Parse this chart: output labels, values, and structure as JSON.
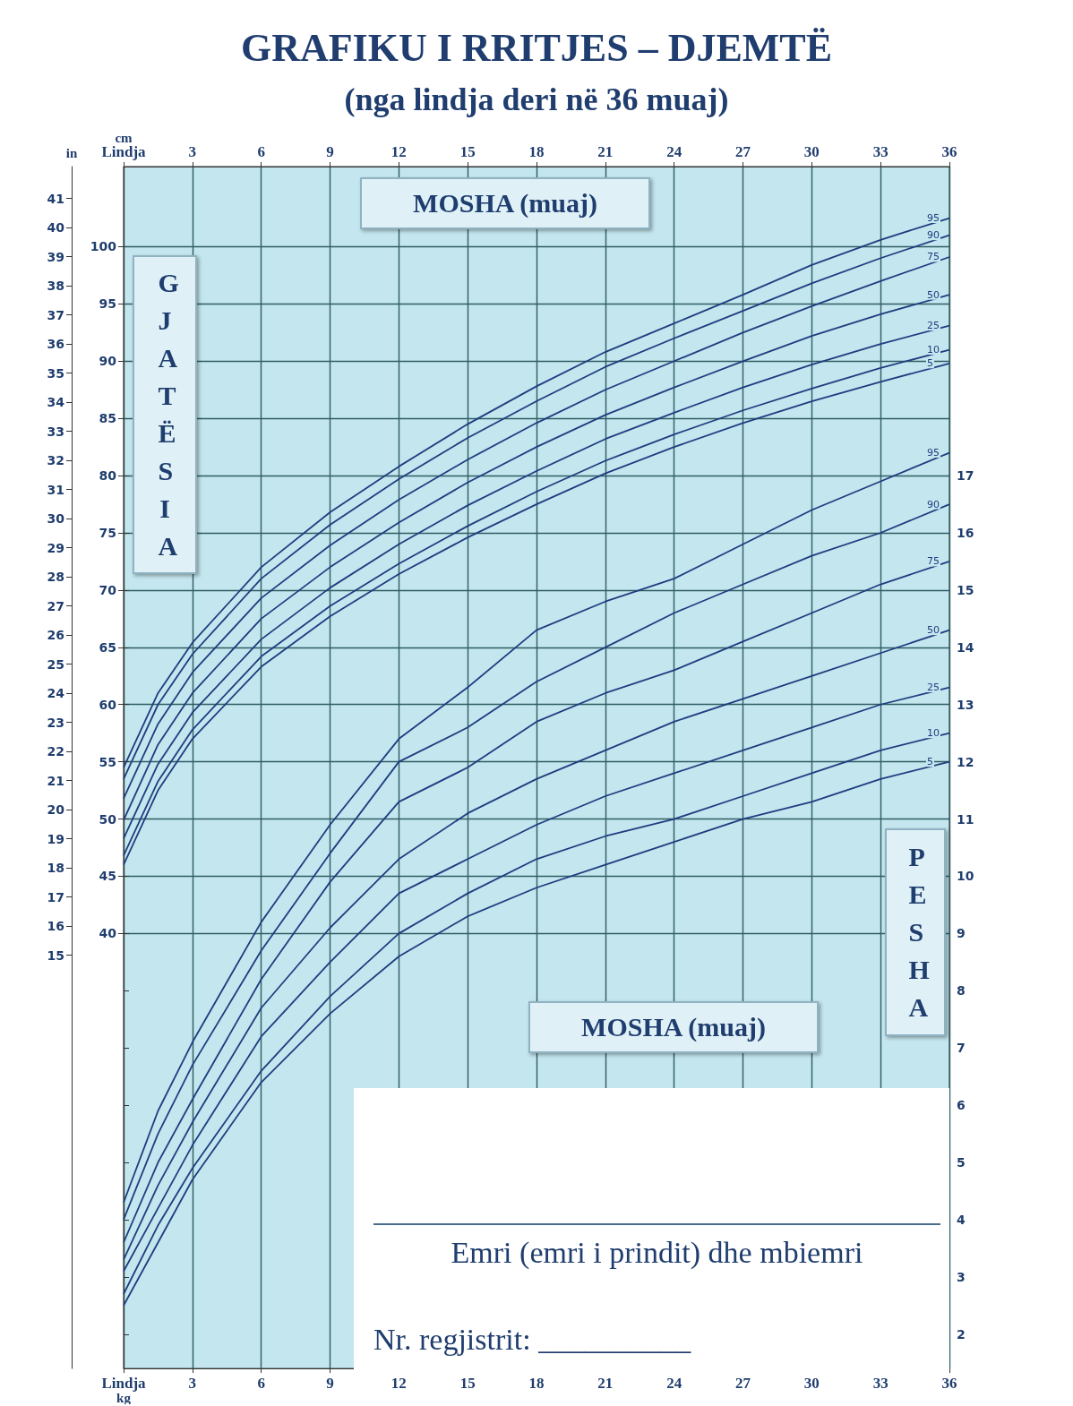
{
  "chart_data": {
    "type": "line",
    "title": "GRAFIKU I RRITJES – DJEMTË",
    "subtitle": "(nga lindja deri në 36 muaj)",
    "xlabel": "MOSHA (muaj)",
    "ylabel": "GJATËSIA",
    "y2label": "PESHA",
    "x": [
      0,
      1.5,
      3,
      6,
      9,
      12,
      15,
      18,
      21,
      24,
      27,
      30,
      33,
      36
    ],
    "xlim": [
      0,
      36
    ],
    "xticks": [
      {
        "value": 0,
        "label": "Lindja"
      },
      3,
      6,
      9,
      12,
      15,
      18,
      21,
      24,
      27,
      30,
      33,
      36
    ],
    "x2lim": [
      0,
      36
    ],
    "x2ticks": [
      {
        "value": 0,
        "label": "Lindja"
      },
      3,
      6,
      9,
      12,
      15,
      18,
      21,
      24,
      27,
      30,
      33,
      36
    ],
    "ylim": [
      2,
      107
    ],
    "yticks": [
      40,
      45,
      50,
      55,
      60,
      65,
      70,
      75,
      80,
      85,
      90,
      95,
      100
    ],
    "y2lim": [
      1.4,
      22.4
    ],
    "y2ticks": [
      2,
      3,
      4,
      5,
      6,
      7,
      8,
      9,
      10,
      11,
      12,
      13,
      14,
      15,
      16,
      17
    ],
    "y3lim": [
      0.8,
      42.1
    ],
    "y3ticks": [
      15,
      16,
      17,
      18,
      19,
      20,
      21,
      22,
      23,
      24,
      25,
      26,
      27,
      28,
      29,
      30,
      31,
      32,
      33,
      34,
      35,
      36,
      37,
      38,
      39,
      40,
      41
    ],
    "grid": true,
    "series": [
      {
        "name": "95",
        "color": "#1f3d80",
        "axis": "y",
        "values": [
          54.5,
          61.0,
          65.4,
          72.0,
          76.8,
          80.8,
          84.5,
          87.8,
          90.8,
          93.3,
          95.8,
          98.4,
          100.6,
          102.5
        ]
      },
      {
        "name": "90",
        "color": "#1f3d80",
        "axis": "y",
        "values": [
          53.5,
          60.0,
          64.4,
          71.0,
          75.7,
          79.7,
          83.3,
          86.5,
          89.5,
          92.0,
          94.4,
          96.8,
          99.0,
          101.0
        ]
      },
      {
        "name": "75",
        "color": "#1f3d80",
        "axis": "y",
        "values": [
          51.8,
          58.3,
          62.8,
          69.3,
          73.9,
          77.9,
          81.4,
          84.6,
          87.5,
          90.0,
          92.5,
          94.8,
          97.0,
          99.1
        ]
      },
      {
        "name": "50",
        "color": "#1f3d80",
        "axis": "y",
        "values": [
          49.9,
          56.5,
          61.0,
          67.5,
          72.0,
          75.9,
          79.4,
          82.5,
          85.3,
          87.7,
          90.0,
          92.2,
          94.1,
          95.8
        ]
      },
      {
        "name": "25",
        "color": "#1f3d80",
        "axis": "y",
        "values": [
          48.3,
          54.8,
          59.3,
          65.7,
          70.2,
          74.0,
          77.4,
          80.4,
          83.2,
          85.5,
          87.7,
          89.7,
          91.5,
          93.1
        ]
      },
      {
        "name": "10",
        "color": "#1f3d80",
        "axis": "y",
        "values": [
          46.8,
          53.3,
          57.8,
          64.2,
          68.6,
          72.3,
          75.6,
          78.6,
          81.3,
          83.6,
          85.7,
          87.6,
          89.4,
          91.0
        ]
      },
      {
        "name": "5",
        "color": "#1f3d80",
        "axis": "y",
        "values": [
          46.0,
          52.5,
          57.0,
          63.3,
          67.7,
          71.4,
          74.6,
          77.5,
          80.2,
          82.5,
          84.6,
          86.5,
          88.2,
          89.8
        ]
      },
      {
        "name": "95",
        "color": "#1f3d80",
        "axis": "y2",
        "values": [
          4.3,
          5.9,
          7.1,
          9.2,
          10.9,
          12.4,
          13.3,
          14.3,
          14.8,
          15.2,
          15.8,
          16.4,
          16.9,
          17.4
        ]
      },
      {
        "name": "90",
        "color": "#1f3d80",
        "axis": "y2",
        "values": [
          4.0,
          5.5,
          6.7,
          8.7,
          10.4,
          12.0,
          12.6,
          13.4,
          14.0,
          14.6,
          15.1,
          15.6,
          16.0,
          16.5
        ]
      },
      {
        "name": "75",
        "color": "#1f3d80",
        "axis": "y2",
        "values": [
          3.6,
          5.0,
          6.1,
          8.2,
          9.9,
          11.3,
          11.9,
          12.7,
          13.2,
          13.6,
          14.1,
          14.6,
          15.1,
          15.5
        ]
      },
      {
        "name": "50",
        "color": "#1f3d80",
        "axis": "y2",
        "values": [
          3.3,
          4.6,
          5.7,
          7.7,
          9.1,
          10.3,
          11.1,
          11.7,
          12.2,
          12.7,
          13.1,
          13.5,
          13.9,
          14.3
        ]
      },
      {
        "name": "25",
        "color": "#1f3d80",
        "axis": "y2",
        "values": [
          3.1,
          4.2,
          5.3,
          7.2,
          8.5,
          9.7,
          10.3,
          10.9,
          11.4,
          11.8,
          12.2,
          12.6,
          13.0,
          13.3
        ]
      },
      {
        "name": "10",
        "color": "#1f3d80",
        "axis": "y2",
        "values": [
          2.7,
          3.9,
          4.9,
          6.6,
          7.9,
          9.0,
          9.7,
          10.3,
          10.7,
          11.0,
          11.4,
          11.8,
          12.2,
          12.5
        ]
      },
      {
        "name": "5",
        "color": "#1f3d80",
        "axis": "y2",
        "values": [
          2.5,
          3.6,
          4.7,
          6.4,
          7.6,
          8.6,
          9.3,
          9.8,
          10.2,
          10.6,
          11.0,
          11.3,
          11.7,
          12.0
        ]
      }
    ],
    "annotations": [
      "in",
      "cm",
      "kg",
      "Emri (emri i prindit) dhe mbiemri",
      "Nr. regjistrit: __________"
    ]
  }
}
